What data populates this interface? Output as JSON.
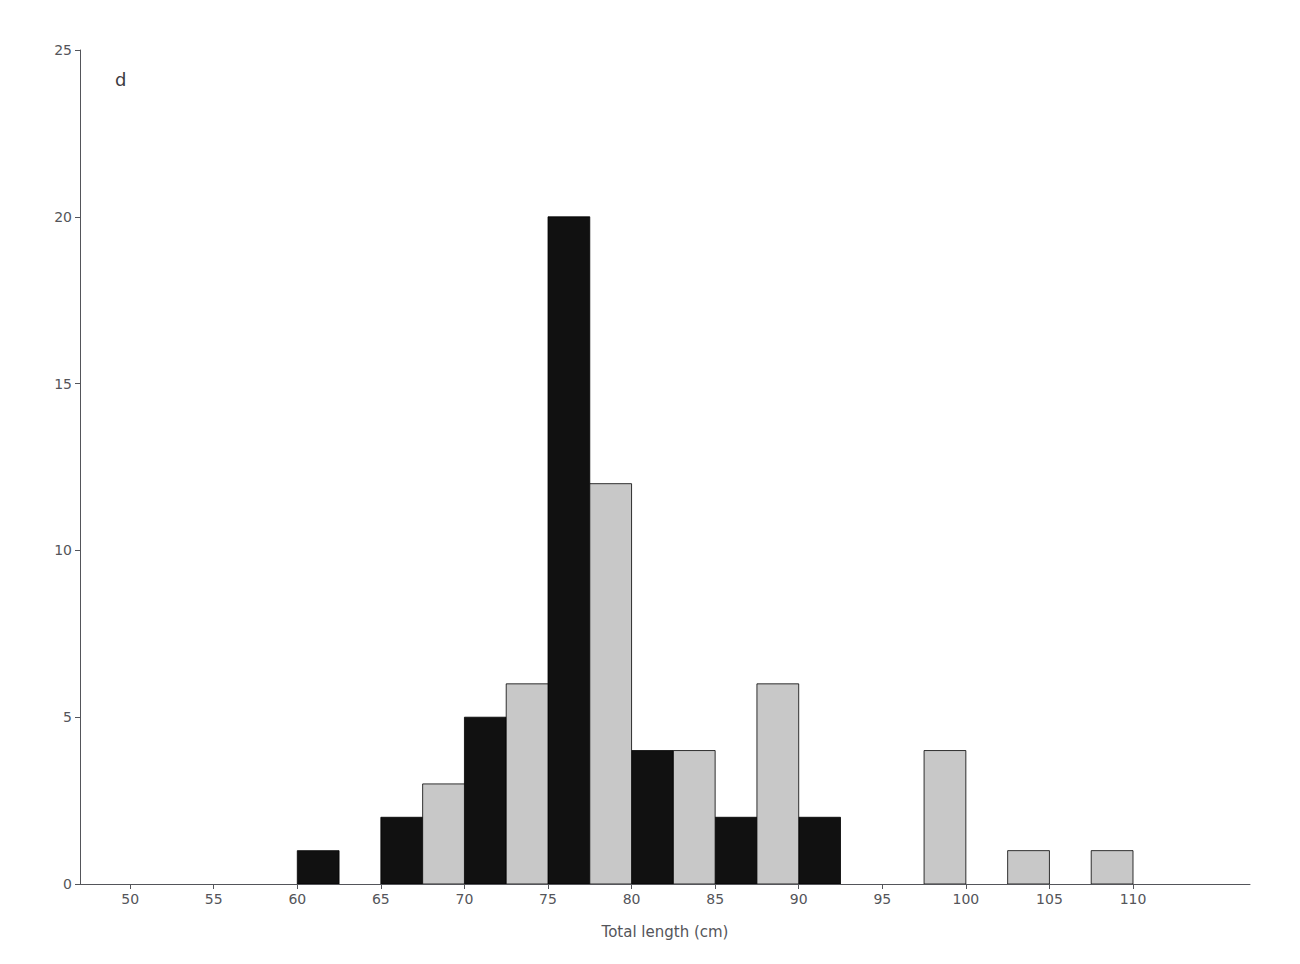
{
  "chart_data": {
    "type": "bar",
    "title": "d",
    "xlabel": "Total length (cm)",
    "bins": [
      50,
      55,
      60,
      65,
      70,
      75,
      80,
      85,
      90,
      95,
      100,
      105,
      110,
      115
    ],
    "series": [
      {
        "color": "#111111",
        "values": [
          0,
          0,
          1,
          2,
          5,
          20,
          4,
          2,
          2,
          0,
          0,
          0,
          0
        ]
      },
      {
        "color": "#c8c8c8",
        "values": [
          0,
          0,
          0,
          3,
          6,
          12,
          4,
          6,
          0,
          4,
          1,
          1,
          0
        ]
      }
    ],
    "xlim": [
      47,
      117
    ],
    "xticks": [
      50,
      55,
      60,
      65,
      70,
      75,
      80,
      85,
      90,
      95,
      100,
      105,
      110
    ],
    "ylim": [
      0,
      25
    ],
    "yticks": [
      0,
      5,
      10,
      15,
      20,
      25
    ],
    "grid": false
  }
}
